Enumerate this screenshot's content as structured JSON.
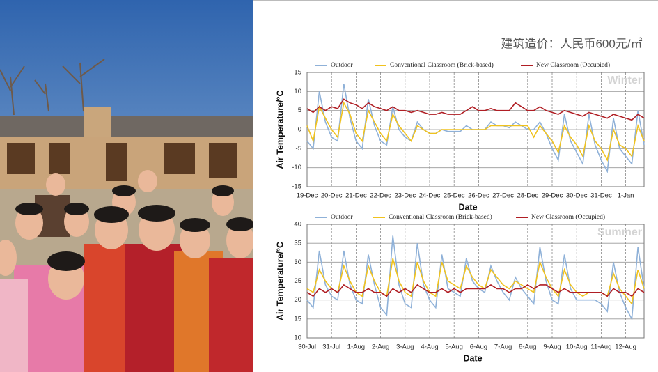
{
  "caption": "建筑造价：人民币600元/㎡",
  "chart_data": [
    {
      "type": "line",
      "watermark": "Winter",
      "x_label": "Date",
      "y_label": "Air Temperature/°C",
      "ylim": [
        -15,
        15
      ],
      "yticks": [
        -15,
        -10,
        -5,
        0,
        5,
        10,
        15
      ],
      "grid": true,
      "legend": "top",
      "categories": [
        "19-Dec",
        null,
        null,
        null,
        "20-Dec",
        null,
        null,
        null,
        "21-Dec",
        null,
        null,
        null,
        "22-Dec",
        null,
        null,
        null,
        "23-Dec",
        null,
        null,
        null,
        "24-Dec",
        null,
        null,
        null,
        "25-Dec",
        null,
        null,
        null,
        "26-Dec",
        null,
        null,
        null,
        "27-Dec",
        null,
        null,
        null,
        "28-Dec",
        null,
        null,
        null,
        "29-Dec",
        null,
        null,
        null,
        "30-Dec",
        null,
        null,
        null,
        "31-Dec",
        null,
        null,
        null,
        "1-Jan",
        null,
        null,
        null
      ],
      "series": [
        {
          "name": "Outdoor",
          "color": "#8fb1d8",
          "values": [
            -3,
            -5,
            10,
            2,
            -2,
            -3,
            12,
            3,
            -3,
            -5,
            8,
            1,
            -3,
            -4,
            6,
            0,
            -2,
            -3,
            2,
            0,
            -1,
            -1,
            0,
            -0.5,
            -0.5,
            -0.5,
            1,
            0,
            0,
            0,
            2,
            1,
            1,
            0.5,
            2,
            1,
            0,
            0,
            2,
            -1,
            -5,
            -8,
            4,
            -3,
            -6,
            -9,
            4,
            -4,
            -8,
            -11,
            3,
            -5,
            -7,
            -9,
            5,
            -4
          ]
        },
        {
          "name": "Conventional Classroom (Brick-based)",
          "color": "#f0c21e",
          "values": [
            1,
            -3,
            6,
            3,
            0,
            -2,
            7,
            4,
            -1,
            -3,
            5,
            2,
            -1,
            -3,
            4,
            1,
            -1,
            -3,
            1,
            0,
            -1,
            -1,
            0,
            0,
            0,
            0,
            0,
            0,
            0,
            0,
            1,
            1,
            1,
            1,
            1,
            1,
            1,
            -2,
            1,
            -1,
            -3,
            -6,
            1,
            -2,
            -4,
            -7,
            1,
            -3,
            -5,
            -8,
            0,
            -4,
            -5,
            -7,
            1,
            -3
          ]
        },
        {
          "name": "New Classroom (Occupied)",
          "color": "#b01e24",
          "values": [
            5.5,
            4.5,
            6,
            5,
            6,
            5.5,
            8,
            7,
            6.5,
            5.5,
            7,
            6,
            5.5,
            5,
            6,
            5,
            5,
            4.5,
            5,
            4.5,
            4,
            4,
            4.5,
            4,
            4,
            4,
            5,
            6,
            5,
            5,
            5.5,
            5,
            5,
            5,
            7,
            6,
            5,
            5,
            6,
            5,
            4.5,
            4,
            5,
            4.5,
            4,
            3.5,
            4.5,
            4,
            3.5,
            3,
            4,
            3.5,
            3,
            2.5,
            4,
            3
          ]
        }
      ]
    },
    {
      "type": "line",
      "watermark": "Summer",
      "x_label": "Date",
      "y_label": "Air Temperature/°C",
      "ylim": [
        10,
        40
      ],
      "yticks": [
        10,
        15,
        20,
        25,
        30,
        35,
        40
      ],
      "grid": true,
      "legend": "top",
      "categories": [
        "30-Jul",
        null,
        null,
        null,
        "31-Jul",
        null,
        null,
        null,
        "1-Aug",
        null,
        null,
        null,
        "2-Aug",
        null,
        null,
        null,
        "3-Aug",
        null,
        null,
        null,
        "4-Aug",
        null,
        null,
        null,
        "5-Aug",
        null,
        null,
        null,
        "6-Aug",
        null,
        null,
        null,
        "7-Aug",
        null,
        null,
        null,
        "8-Aug",
        null,
        null,
        null,
        "9-Aug",
        null,
        null,
        null,
        "10-Aug",
        null,
        null,
        null,
        "11-Aug",
        null,
        null,
        null,
        "12-Aug",
        null,
        null,
        null
      ],
      "series": [
        {
          "name": "Outdoor",
          "color": "#8fb1d8",
          "values": [
            20,
            18,
            33,
            24,
            21,
            20,
            33,
            24,
            20,
            19,
            32,
            24,
            18,
            16,
            37,
            24,
            19,
            18,
            35,
            24,
            20,
            18,
            32,
            23,
            22,
            21,
            31,
            25,
            23,
            22,
            29,
            25,
            22,
            20,
            26,
            23,
            21,
            19,
            34,
            25,
            20,
            19,
            32,
            23,
            20,
            20,
            20,
            20,
            19,
            17,
            30,
            22,
            18,
            15,
            34,
            23
          ]
        },
        {
          "name": "Conventional Classroom (Brick-based)",
          "color": "#f0c21e",
          "values": [
            23,
            22,
            28,
            25,
            23,
            22,
            29,
            25,
            22,
            21,
            29,
            25,
            22,
            21,
            31,
            25,
            22,
            21,
            30,
            25,
            22,
            21,
            30,
            25,
            24,
            23,
            29,
            26,
            24,
            23,
            28,
            26,
            24,
            23,
            25,
            24,
            23,
            22,
            30,
            26,
            23,
            21,
            28,
            24,
            22,
            21,
            22,
            22,
            22,
            21,
            27,
            23,
            21,
            19,
            28,
            23
          ]
        },
        {
          "name": "New Classroom (Occupied)",
          "color": "#b01e24",
          "values": [
            22,
            21,
            23,
            22,
            23,
            22,
            24,
            23,
            22,
            22,
            23,
            22,
            22,
            21,
            23,
            22,
            23,
            22,
            24,
            23,
            22,
            22,
            23,
            22,
            23,
            22,
            23,
            23,
            23,
            23,
            24,
            23,
            23,
            22,
            23,
            23,
            24,
            23,
            24,
            24,
            23,
            22,
            23,
            22,
            22,
            22,
            22,
            22,
            22,
            21,
            23,
            22,
            22,
            21,
            23,
            22
          ]
        }
      ]
    }
  ]
}
